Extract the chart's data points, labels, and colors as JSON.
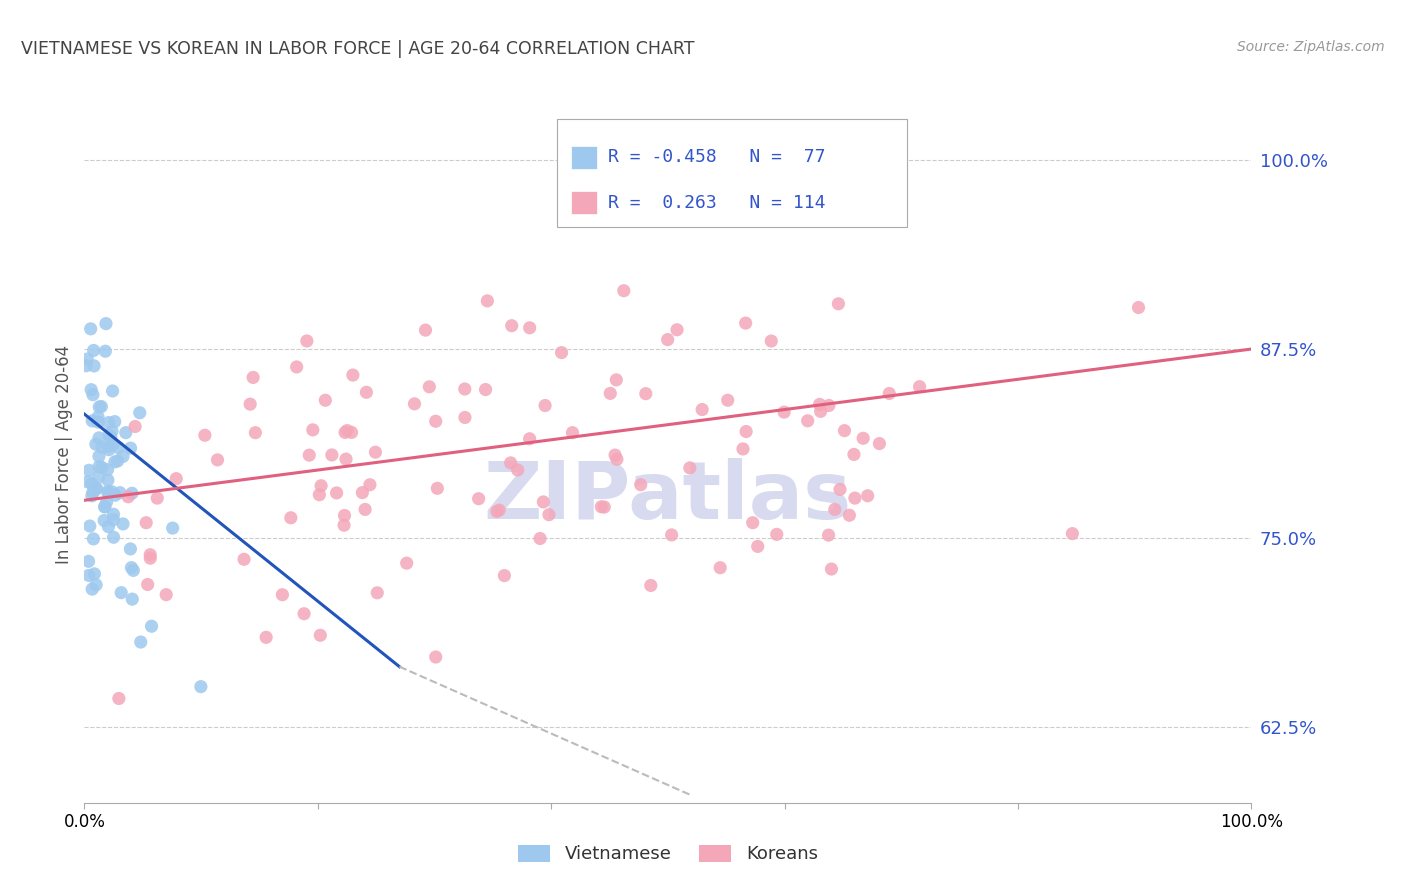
{
  "title": "VIETNAMESE VS KOREAN IN LABOR FORCE | AGE 20-64 CORRELATION CHART",
  "source": "Source: ZipAtlas.com",
  "ylabel": "In Labor Force | Age 20-64",
  "ytick_labels": [
    "62.5%",
    "75.0%",
    "87.5%",
    "100.0%"
  ],
  "ytick_values": [
    0.625,
    0.75,
    0.875,
    1.0
  ],
  "xlim": [
    0.0,
    1.0
  ],
  "ylim": [
    0.575,
    1.035
  ],
  "color_viet": "#9EC8EE",
  "color_kor": "#F4A7B9",
  "color_viet_line": "#2255BB",
  "color_kor_line": "#E06080",
  "color_dashed_line": "#BBBBBB",
  "background_color": "#FFFFFF",
  "title_color": "#444444",
  "source_color": "#999999",
  "ytick_color": "#3355CC",
  "legend_text_color": "#3355CC",
  "watermark_text": "ZIPatlas",
  "watermark_color": "#D8DBF0",
  "grid_color": "#CCCCCC",
  "seed_viet": 42,
  "seed_kor": 7
}
